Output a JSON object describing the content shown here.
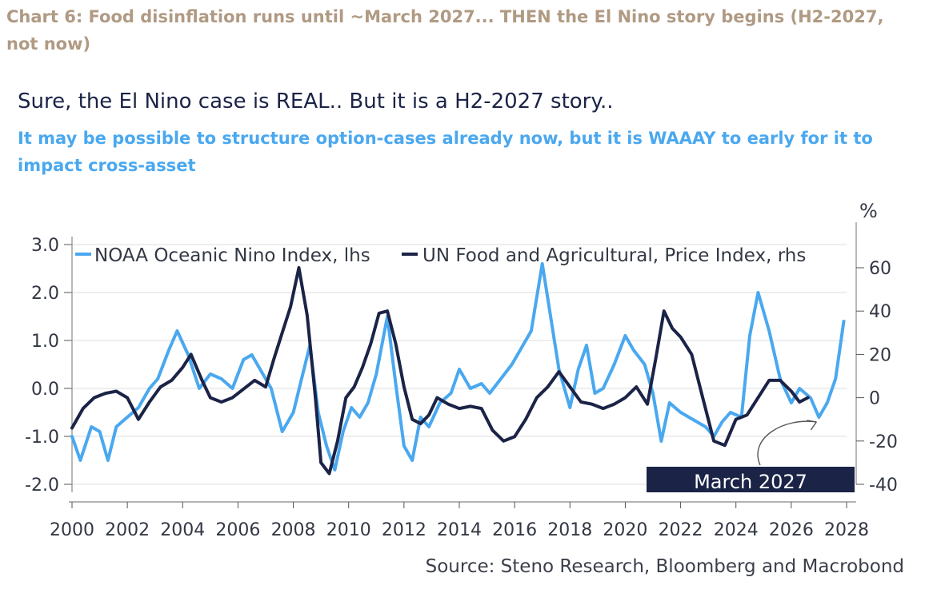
{
  "caption": "Chart 6: Food disinflation runs until ~March 2027... THEN the El Nino story begins (H2-2027, not now)",
  "colors": {
    "caption": "#b09a83",
    "title": "#1b2347",
    "subtitle": "#4aa8ef",
    "noaa": "#4aa8ef",
    "fao": "#1b2347",
    "annotation_box": "#1b2347",
    "grid": "#dcdcdc"
  },
  "chart_data": {
    "type": "line",
    "title": "Sure, the El Nino case is REAL.. But it is a H2-2027 story..",
    "subtitle": "It may be possible to structure option-cases already now, but it is WAAAY to early for it to impact cross-asset",
    "source": "Source: Steno Research, Bloomberg and Macrobond",
    "y_right_unit": "%",
    "x_ticks": [
      "2000",
      "2002",
      "2004",
      "2006",
      "2008",
      "2010",
      "2012",
      "2014",
      "2016",
      "2018",
      "2020",
      "2022",
      "2024",
      "2026",
      "2028"
    ],
    "y_left_ticks": [
      "3.0",
      "2.0",
      "1.0",
      "0.0",
      "-1.0",
      "-2.0"
    ],
    "y_right_ticks": [
      "60",
      "40",
      "20",
      "0",
      "-20",
      "-40"
    ],
    "xlim": [
      2000,
      2028
    ],
    "ylim_left": [
      -2.0,
      3.0
    ],
    "ylim_right": [
      -40,
      60
    ],
    "grid": true,
    "legend_position": "top",
    "series": [
      {
        "name": "NOAA Oceanic Nino Index, lhs",
        "axis": "left",
        "x": [
          2000.0,
          2000.3,
          2000.7,
          2001.0,
          2001.3,
          2001.6,
          2002.0,
          2002.4,
          2002.8,
          2003.1,
          2003.5,
          2003.8,
          2004.2,
          2004.6,
          2005.0,
          2005.4,
          2005.8,
          2006.2,
          2006.5,
          2006.9,
          2007.2,
          2007.6,
          2008.0,
          2008.3,
          2008.6,
          2008.9,
          2009.2,
          2009.5,
          2009.8,
          2010.1,
          2010.4,
          2010.7,
          2011.0,
          2011.4,
          2011.7,
          2012.0,
          2012.3,
          2012.6,
          2012.9,
          2013.3,
          2013.7,
          2014.0,
          2014.4,
          2014.8,
          2015.1,
          2015.5,
          2015.9,
          2016.2,
          2016.6,
          2017.0,
          2017.3,
          2017.6,
          2018.0,
          2018.3,
          2018.6,
          2018.9,
          2019.2,
          2019.6,
          2020.0,
          2020.3,
          2020.7,
          2021.0,
          2021.3,
          2021.6,
          2022.0,
          2022.3,
          2022.6,
          2022.9,
          2023.2,
          2023.5,
          2023.8,
          2024.2,
          2024.5,
          2024.8,
          2025.2,
          2025.6,
          2026.0,
          2026.3,
          2026.7,
          2027.0,
          2027.3,
          2027.6,
          2027.9
        ],
        "y": [
          -1.0,
          -1.5,
          -0.8,
          -0.9,
          -1.5,
          -0.8,
          -0.6,
          -0.4,
          0.0,
          0.2,
          0.8,
          1.2,
          0.7,
          0.0,
          0.3,
          0.2,
          0.0,
          0.6,
          0.7,
          0.3,
          0.0,
          -0.9,
          -0.5,
          0.2,
          0.9,
          -0.5,
          -1.2,
          -1.7,
          -0.9,
          -0.4,
          -0.6,
          -0.3,
          0.3,
          1.5,
          0.1,
          -1.2,
          -1.5,
          -0.6,
          -0.8,
          -0.3,
          -0.1,
          0.4,
          0.0,
          0.1,
          -0.1,
          0.2,
          0.5,
          0.8,
          1.2,
          2.6,
          1.5,
          0.4,
          -0.4,
          0.4,
          0.9,
          -0.1,
          0.0,
          0.5,
          1.1,
          0.8,
          0.5,
          -0.1,
          -1.1,
          -0.3,
          -0.5,
          -0.6,
          -0.7,
          -0.8,
          -1.0,
          -0.7,
          -0.5,
          -0.6,
          1.1,
          2.0,
          1.2,
          0.2,
          -0.3,
          0.0,
          -0.2,
          -0.6,
          -0.3,
          0.2,
          1.4
        ]
      },
      {
        "name": "UN Food and Agricultural, Price Index, rhs",
        "axis": "right",
        "x": [
          2000.0,
          2000.4,
          2000.8,
          2001.2,
          2001.6,
          2002.0,
          2002.4,
          2002.8,
          2003.2,
          2003.6,
          2004.0,
          2004.3,
          2004.7,
          2005.0,
          2005.4,
          2005.8,
          2006.2,
          2006.6,
          2007.0,
          2007.3,
          2007.6,
          2007.9,
          2008.2,
          2008.5,
          2008.8,
          2009.0,
          2009.3,
          2009.6,
          2009.9,
          2010.2,
          2010.5,
          2010.8,
          2011.1,
          2011.4,
          2011.7,
          2012.0,
          2012.3,
          2012.6,
          2012.9,
          2013.2,
          2013.6,
          2014.0,
          2014.4,
          2014.8,
          2015.2,
          2015.6,
          2016.0,
          2016.4,
          2016.8,
          2017.2,
          2017.6,
          2018.0,
          2018.4,
          2018.8,
          2019.2,
          2019.6,
          2020.0,
          2020.4,
          2020.8,
          2021.1,
          2021.4,
          2021.7,
          2022.0,
          2022.4,
          2022.8,
          2023.2,
          2023.6,
          2024.0,
          2024.4,
          2024.8,
          2025.2,
          2025.6,
          2026.0,
          2026.3,
          2026.6
        ],
        "y": [
          -14,
          -5,
          0,
          2,
          3,
          0,
          -10,
          -2,
          5,
          8,
          14,
          20,
          8,
          0,
          -2,
          0,
          4,
          8,
          5,
          18,
          30,
          42,
          60,
          38,
          0,
          -30,
          -35,
          -20,
          0,
          5,
          14,
          25,
          39,
          40,
          25,
          5,
          -10,
          -12,
          -8,
          0,
          -3,
          -5,
          -4,
          -5,
          -15,
          -20,
          -18,
          -10,
          0,
          5,
          12,
          5,
          -2,
          -3,
          -5,
          -3,
          0,
          5,
          -3,
          18,
          40,
          32,
          28,
          20,
          0,
          -20,
          -22,
          -10,
          -8,
          0,
          8,
          8,
          3,
          -2,
          0
        ]
      }
    ],
    "annotation": {
      "label": "March 2027",
      "x": 2027.2,
      "y_left": -0.6
    }
  }
}
